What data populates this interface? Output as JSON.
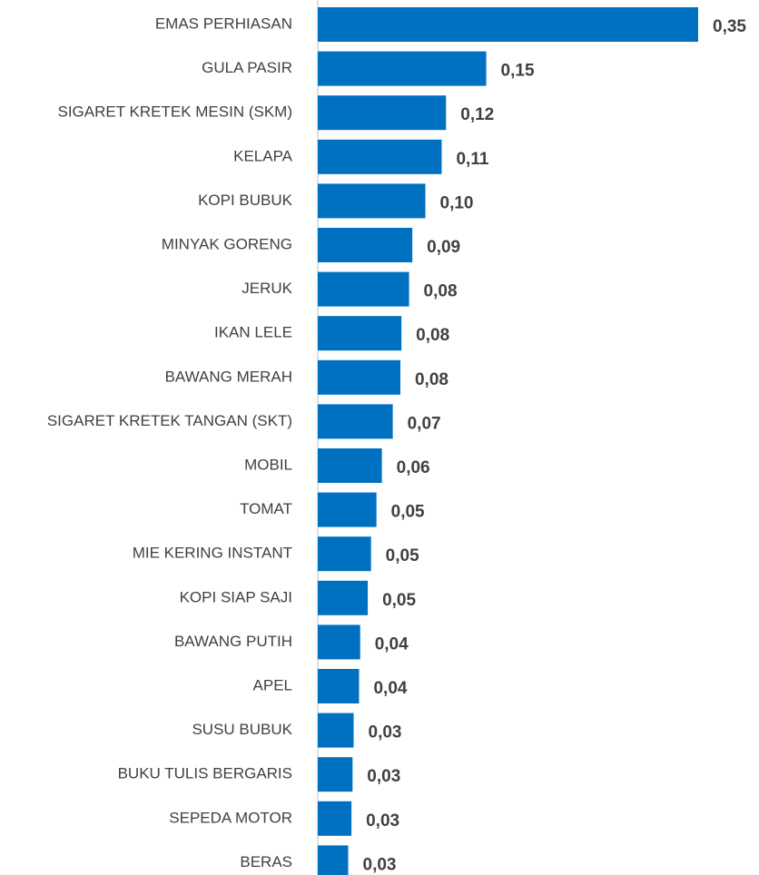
{
  "chart_data": {
    "type": "barh",
    "categories": [
      "EMAS PERHIASAN",
      "GULA PASIR",
      "SIGARET KRETEK MESIN (SKM)",
      "KELAPA",
      "KOPI BUBUK",
      "MINYAK GORENG",
      "JERUK",
      "IKAN LELE",
      "BAWANG MERAH",
      "SIGARET KRETEK TANGAN (SKT)",
      "MOBIL",
      "TOMAT",
      "MIE KERING INSTANT",
      "KOPI SIAP SAJI",
      "BAWANG PUTIH",
      "APEL",
      "SUSU BUBUK",
      "BUKU TULIS BERGARIS",
      "SEPEDA MOTOR",
      "BERAS"
    ],
    "values": [
      0.35,
      0.155,
      0.118,
      0.114,
      0.099,
      0.087,
      0.084,
      0.077,
      0.076,
      0.069,
      0.059,
      0.054,
      0.049,
      0.046,
      0.039,
      0.038,
      0.033,
      0.032,
      0.031,
      0.028
    ],
    "value_labels": [
      "0,35",
      "0,15",
      "0,12",
      "0,11",
      "0,10",
      "0,09",
      "0,08",
      "0,08",
      "0,08",
      "0,07",
      "0,06",
      "0,05",
      "0,05",
      "0,05",
      "0,04",
      "0,04",
      "0,03",
      "0,03",
      "0,03",
      "0,03"
    ],
    "color": "#0070c0",
    "xlim": [
      0,
      0.35
    ]
  }
}
